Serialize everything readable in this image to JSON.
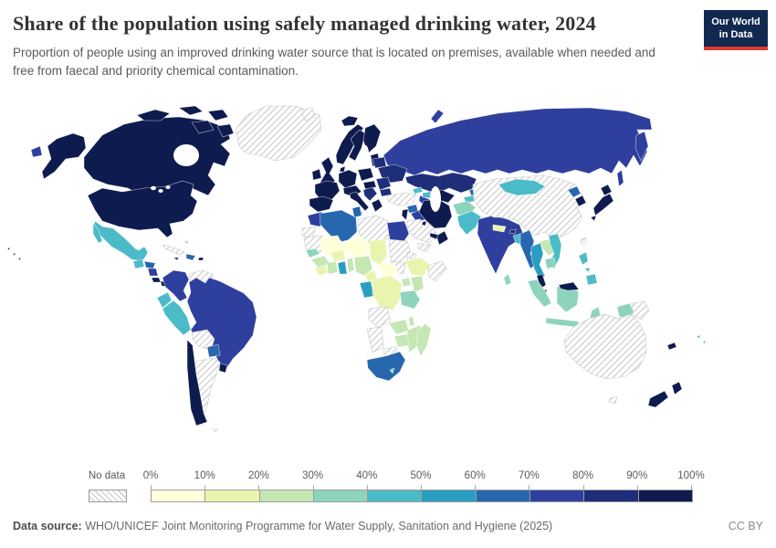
{
  "header": {
    "title": "Share of the population using safely managed drinking water, 2024",
    "subtitle": "Proportion of people using an improved drinking water source that is located on premises, available when needed and free from faecal and priority chemical contamination.",
    "logo": {
      "line1": "Our World",
      "line2": "in Data",
      "bg_color": "#12294f",
      "accent_color": "#d73a33"
    }
  },
  "legend": {
    "no_data_label": "No data",
    "ticks": [
      "0%",
      "10%",
      "20%",
      "30%",
      "40%",
      "50%",
      "60%",
      "70%",
      "80%",
      "90%",
      "100%"
    ]
  },
  "footer": {
    "source_label": "Data source:",
    "source_text": " WHO/UNICEF Joint Monitoring Programme for Water Supply, Sanitation and Hygiene (2025)",
    "license": "CC BY"
  },
  "chart_data": {
    "type": "choropleth",
    "title": "Share of the population using safely managed drinking water, 2024",
    "unit": "% of population",
    "legend_position": "bottom",
    "bins": [
      {
        "range": "0-10%",
        "color": "#ffffd9"
      },
      {
        "range": "10-20%",
        "color": "#e9f5af"
      },
      {
        "range": "20-30%",
        "color": "#c4e7b4"
      },
      {
        "range": "30-40%",
        "color": "#8ed4bc"
      },
      {
        "range": "40-50%",
        "color": "#4bbbc7"
      },
      {
        "range": "50-60%",
        "color": "#2a9ec0"
      },
      {
        "range": "60-70%",
        "color": "#2767ae"
      },
      {
        "range": "70-80%",
        "color": "#2e3f9e"
      },
      {
        "range": "80-90%",
        "color": "#1f2e78"
      },
      {
        "range": "90-100%",
        "color": "#0e1b4f"
      }
    ],
    "no_data": {
      "label": "No data",
      "pattern": "diagonal-hatch",
      "line_color": "#d4d4d4"
    },
    "countries": {
      "United States": "90-100%",
      "Canada": "90-100%",
      "Greenland": "no-data",
      "Mexico": "40-50%",
      "Guatemala": "40-50%",
      "Honduras": "60-70%",
      "Nicaragua": "70-80%",
      "Costa Rica": "90-100%",
      "Panama": "90-100%",
      "Cuba": "no-data",
      "Bahamas": "no-data",
      "Jamaica": "80-90%",
      "Dominican Republic": "60-70%",
      "Puerto Rico": "90-100%",
      "Colombia": "70-80%",
      "Venezuela": "no-data",
      "Guyana": "60-70%",
      "Suriname": "50-60%",
      "French Guiana": "90-100%",
      "Ecuador": "40-50%",
      "Peru": "40-50%",
      "Brazil": "70-80%",
      "Bolivia": "no-data",
      "Paraguay": "60-70%",
      "Chile": "90-100%",
      "Argentina": "no-data",
      "Uruguay": "90-100%",
      "Falkland Islands": "no-data",
      "Iceland": "90-100%",
      "Ireland": "90-100%",
      "United Kingdom": "90-100%",
      "Norway": "90-100%",
      "Sweden": "90-100%",
      "Finland": "90-100%",
      "Denmark": "90-100%",
      "Baltic states": "90-100%",
      "France": "90-100%",
      "Spain": "90-100%",
      "Germany": "90-100%",
      "Austria": "90-100%",
      "Italy": "90-100%",
      "Poland": "90-100%",
      "Hungary": "90-100%",
      "Serbia": "80-90%",
      "Greece": "90-100%",
      "Romania": "80-90%",
      "Bulgaria": "80-90%",
      "Ukraine": "80-90%",
      "Belarus": "80-90%",
      "Russia": "70-80%",
      "Svalbard": "no-data",
      "Kazakhstan": "80-90%",
      "Uzbekistan": "90-100%",
      "Turkmenistan": "70-80%",
      "Kyrgyzstan": "60-70%",
      "Tajikistan": "40-50%",
      "Georgia": "40-50%",
      "Azerbaijan": "40-50%",
      "Turkey": "no-data",
      "Syria": "60-70%",
      "Iraq": "70-80%",
      "Israel": "90-100%",
      "Iran": "90-100%",
      "Saudi Arabia": "no-data",
      "Yemen": "no-data",
      "Oman": "90-100%",
      "United Arab Emirates": "90-100%",
      "Kuwait": "90-100%",
      "Afghanistan": "30-40%",
      "Pakistan": "40-50%",
      "India": "70-80%",
      "Nepal": "10-20%",
      "Bhutan": "80-90%",
      "Bangladesh": "40-50%",
      "Sri Lanka": "30-40%",
      "China": "no-data",
      "Mongolia": "40-50%",
      "North Korea": "60-70%",
      "South Korea": "90-100%",
      "Japan": "90-100%",
      "Taiwan": "no-data",
      "Myanmar": "60-70%",
      "Thailand": "50-60%",
      "Laos": "20-30%",
      "Vietnam": "40-50%",
      "Cambodia": "30-40%",
      "Malaysia": "90-100%",
      "Singapore": "90-100%",
      "Indonesia": "30-40%",
      "Papua New Guinea": "no-data",
      "Philippines": "40-50%",
      "Australia": "no-data",
      "New Zealand": "90-100%",
      "New Caledonia": "90-100%",
      "Fiji": "40-50%",
      "Morocco": "70-80%",
      "Western Sahara": "no-data",
      "Algeria": "60-70%",
      "Tunisia": "60-70%",
      "Libya": "no-data",
      "Egypt": "70-80%",
      "Mauritania": "no-data",
      "Mali": "0-10%",
      "Niger": "0-10%",
      "Chad": "10-20%",
      "Sudan": "no-data",
      "South Sudan": "no-data",
      "Eritrea": "no-data",
      "Ethiopia": "10-20%",
      "Somalia": "no-data",
      "Senegal": "30-40%",
      "Guinea": "20-30%",
      "Sierra Leone": "10-20%",
      "Cote d'Ivoire": "20-30%",
      "Ghana": "50-60%",
      "Benin": "20-30%",
      "Burkina Faso": "10-20%",
      "Nigeria": "20-30%",
      "Cameroon": "10-20%",
      "Central African Republic": "0-10%",
      "Gabon": "50-60%",
      "Democratic Republic of Congo": "10-20%",
      "Uganda": "20-30%",
      "Kenya": "20-30%",
      "Tanzania": "30-40%",
      "Angola": "no-data",
      "Zambia": "20-30%",
      "Malawi": "20-30%",
      "Mozambique": "20-30%",
      "Zimbabwe": "20-30%",
      "Namibia": "no-data",
      "Botswana": "no-data",
      "South Africa": "60-70%",
      "Lesotho": "30-40%",
      "Madagascar": "20-30%"
    }
  }
}
